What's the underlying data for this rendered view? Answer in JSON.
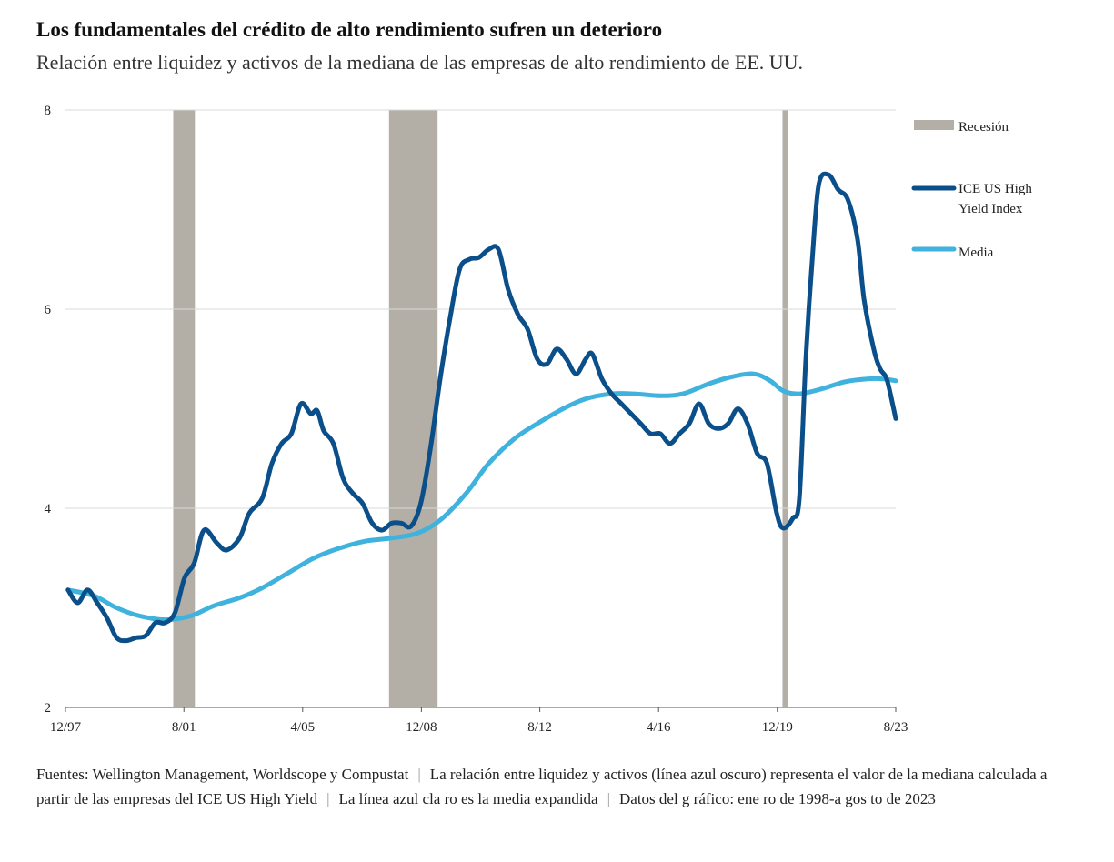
{
  "title": "Los fundamentales del crédito de alto rendimiento sufren un deterioro",
  "subtitle": "Relación entre liquidez y activos de la mediana de las empresas de alto rendimiento de EE. UU.",
  "colors": {
    "recession": "#b3afa6",
    "index": "#0b4f8a",
    "mean": "#3fb2dd",
    "grid": "#d8d8d8",
    "axis": "#555555"
  },
  "legend": {
    "recession": "Recesión",
    "index_line1": "ICE US High",
    "index_line2": "Yield Index",
    "mean": "Media"
  },
  "footer": {
    "source": "Fuentes: Wellington Management, Worldscope y Compustat",
    "note1": "La relación entre liquidez y activos (línea azul oscuro) representa el valor de la mediana calculada a partir de las empresas del ICE US High Yield",
    "note2": "La línea azul cla ro es la media expandida",
    "note3": "Datos del g ráfico: ene ro de 1998-a gos to de 2023"
  },
  "chart_data": {
    "type": "line",
    "title": "Los fundamentales del crédito de alto rendimiento sufren un deterioro",
    "subtitle": "Relación entre liquidez y activos de la mediana de las empresas de alto rendimiento de EE. UU.",
    "xlabel": "",
    "ylabel": "",
    "x_range": [
      1997.92,
      2023.58
    ],
    "ylim": [
      2,
      8
    ],
    "y_ticks": [
      2,
      4,
      6,
      8
    ],
    "x_ticks": [
      {
        "label": "12/97",
        "x": 1997.92
      },
      {
        "label": "8/01",
        "x": 2001.58
      },
      {
        "label": "4/05",
        "x": 2005.25
      },
      {
        "label": "12/08",
        "x": 2008.92
      },
      {
        "label": "8/12",
        "x": 2012.58
      },
      {
        "label": "4/16",
        "x": 2016.25
      },
      {
        "label": "12/19",
        "x": 2019.92
      },
      {
        "label": "8/23",
        "x": 2023.58
      }
    ],
    "recessions": [
      {
        "start": 2001.25,
        "end": 2001.92
      },
      {
        "start": 2007.92,
        "end": 2009.42
      },
      {
        "start": 2020.08,
        "end": 2020.25
      }
    ],
    "legend_position": "right",
    "series": [
      {
        "name": "ICE US High Yield Index",
        "points": [
          [
            1998.0,
            3.18
          ],
          [
            1998.3,
            3.05
          ],
          [
            1998.6,
            3.18
          ],
          [
            1998.9,
            3.05
          ],
          [
            1999.2,
            2.9
          ],
          [
            1999.5,
            2.7
          ],
          [
            1999.8,
            2.67
          ],
          [
            2000.1,
            2.7
          ],
          [
            2000.4,
            2.72
          ],
          [
            2000.7,
            2.85
          ],
          [
            2001.0,
            2.85
          ],
          [
            2001.3,
            2.95
          ],
          [
            2001.6,
            3.3
          ],
          [
            2001.9,
            3.45
          ],
          [
            2002.2,
            3.78
          ],
          [
            2002.6,
            3.65
          ],
          [
            2002.9,
            3.58
          ],
          [
            2003.3,
            3.7
          ],
          [
            2003.6,
            3.95
          ],
          [
            2004.0,
            4.1
          ],
          [
            2004.3,
            4.45
          ],
          [
            2004.6,
            4.65
          ],
          [
            2004.9,
            4.75
          ],
          [
            2005.2,
            5.05
          ],
          [
            2005.5,
            4.95
          ],
          [
            2005.7,
            4.98
          ],
          [
            2005.9,
            4.78
          ],
          [
            2006.2,
            4.65
          ],
          [
            2006.5,
            4.3
          ],
          [
            2006.8,
            4.15
          ],
          [
            2007.1,
            4.05
          ],
          [
            2007.4,
            3.85
          ],
          [
            2007.7,
            3.78
          ],
          [
            2008.0,
            3.85
          ],
          [
            2008.3,
            3.85
          ],
          [
            2008.6,
            3.82
          ],
          [
            2008.9,
            4.05
          ],
          [
            2009.2,
            4.6
          ],
          [
            2009.5,
            5.3
          ],
          [
            2009.8,
            5.9
          ],
          [
            2010.1,
            6.4
          ],
          [
            2010.4,
            6.5
          ],
          [
            2010.7,
            6.52
          ],
          [
            2011.0,
            6.6
          ],
          [
            2011.3,
            6.6
          ],
          [
            2011.6,
            6.2
          ],
          [
            2011.9,
            5.95
          ],
          [
            2012.2,
            5.8
          ],
          [
            2012.5,
            5.5
          ],
          [
            2012.8,
            5.45
          ],
          [
            2013.1,
            5.6
          ],
          [
            2013.4,
            5.5
          ],
          [
            2013.7,
            5.35
          ],
          [
            2014.0,
            5.5
          ],
          [
            2014.2,
            5.55
          ],
          [
            2014.5,
            5.3
          ],
          [
            2014.8,
            5.15
          ],
          [
            2015.1,
            5.05
          ],
          [
            2015.4,
            4.95
          ],
          [
            2015.7,
            4.85
          ],
          [
            2016.0,
            4.75
          ],
          [
            2016.3,
            4.75
          ],
          [
            2016.6,
            4.65
          ],
          [
            2016.9,
            4.75
          ],
          [
            2017.2,
            4.85
          ],
          [
            2017.5,
            5.05
          ],
          [
            2017.8,
            4.85
          ],
          [
            2018.1,
            4.8
          ],
          [
            2018.4,
            4.85
          ],
          [
            2018.7,
            5.0
          ],
          [
            2019.0,
            4.85
          ],
          [
            2019.3,
            4.55
          ],
          [
            2019.6,
            4.45
          ],
          [
            2019.9,
            3.95
          ],
          [
            2020.1,
            3.8
          ],
          [
            2020.4,
            3.9
          ],
          [
            2020.6,
            4.1
          ],
          [
            2020.8,
            5.5
          ],
          [
            2021.0,
            6.5
          ],
          [
            2021.2,
            7.25
          ],
          [
            2021.5,
            7.35
          ],
          [
            2021.8,
            7.2
          ],
          [
            2022.1,
            7.1
          ],
          [
            2022.4,
            6.7
          ],
          [
            2022.6,
            6.1
          ],
          [
            2022.9,
            5.6
          ],
          [
            2023.1,
            5.4
          ],
          [
            2023.3,
            5.3
          ],
          [
            2023.5,
            5.02
          ],
          [
            2023.58,
            4.9
          ]
        ]
      },
      {
        "name": "Media",
        "points": [
          [
            1998.0,
            3.18
          ],
          [
            1998.8,
            3.12
          ],
          [
            1999.5,
            3.0
          ],
          [
            2000.2,
            2.92
          ],
          [
            2001.0,
            2.88
          ],
          [
            2001.8,
            2.92
          ],
          [
            2002.5,
            3.02
          ],
          [
            2003.3,
            3.1
          ],
          [
            2004.0,
            3.2
          ],
          [
            2004.8,
            3.35
          ],
          [
            2005.6,
            3.5
          ],
          [
            2006.4,
            3.6
          ],
          [
            2007.2,
            3.67
          ],
          [
            2008.0,
            3.7
          ],
          [
            2008.8,
            3.75
          ],
          [
            2009.5,
            3.88
          ],
          [
            2010.3,
            4.15
          ],
          [
            2011.0,
            4.45
          ],
          [
            2011.8,
            4.7
          ],
          [
            2012.5,
            4.85
          ],
          [
            2013.3,
            5.0
          ],
          [
            2014.0,
            5.1
          ],
          [
            2014.8,
            5.15
          ],
          [
            2015.5,
            5.15
          ],
          [
            2016.3,
            5.13
          ],
          [
            2017.0,
            5.15
          ],
          [
            2017.8,
            5.25
          ],
          [
            2018.5,
            5.32
          ],
          [
            2019.2,
            5.35
          ],
          [
            2019.7,
            5.28
          ],
          [
            2020.1,
            5.18
          ],
          [
            2020.6,
            5.15
          ],
          [
            2021.3,
            5.2
          ],
          [
            2022.0,
            5.27
          ],
          [
            2022.7,
            5.3
          ],
          [
            2023.2,
            5.3
          ],
          [
            2023.58,
            5.28
          ]
        ]
      }
    ]
  }
}
